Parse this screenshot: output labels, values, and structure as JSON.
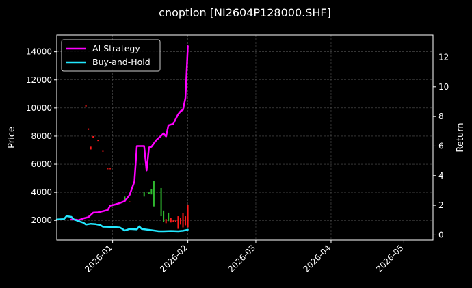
{
  "chart_data": {
    "type": "line",
    "title": "cnoption [NI2604P128000.SHF]",
    "ylabel": "Price",
    "y2label": "Return",
    "x_range": [
      "2025-12-09",
      "2026-05-13"
    ],
    "ylim": [
      600,
      15200
    ],
    "y2lim": [
      -0.35,
      13.5
    ],
    "x_tick_labels": [
      "2026-01",
      "2026-02",
      "2026-03",
      "2026-04",
      "2026-05"
    ],
    "x_tick_dates": [
      "2026-01-01",
      "2026-02-01",
      "2026-03-01",
      "2026-04-01",
      "2026-05-01"
    ],
    "y_ticks": [
      2000,
      4000,
      6000,
      8000,
      10000,
      12000,
      14000
    ],
    "y_tick_labels": [
      "2000",
      "4000",
      "6000",
      "8000",
      "10000",
      "12000",
      "14000"
    ],
    "y2_ticks": [
      0,
      2,
      4,
      6,
      8,
      10,
      12
    ],
    "y2_tick_labels": [
      "0",
      "2",
      "4",
      "6",
      "8",
      "10",
      "12"
    ],
    "grid": true,
    "legend_position": "top-left",
    "series": [
      {
        "name": "AI Strategy",
        "axis": "right",
        "color": "#ff00ff",
        "points": [
          [
            "2025-12-15",
            1.05
          ],
          [
            "2025-12-17",
            1.03
          ],
          [
            "2025-12-18",
            1.0
          ],
          [
            "2025-12-20",
            1.12
          ],
          [
            "2025-12-22",
            1.2
          ],
          [
            "2025-12-24",
            1.5
          ],
          [
            "2025-12-26",
            1.52
          ],
          [
            "2025-12-28",
            1.6
          ],
          [
            "2025-12-30",
            1.68
          ],
          [
            "2025-12-31",
            1.98
          ],
          [
            "2026-01-02",
            2.05
          ],
          [
            "2026-01-04",
            2.15
          ],
          [
            "2026-01-06",
            2.28
          ],
          [
            "2026-01-08",
            2.7
          ],
          [
            "2026-01-09",
            3.15
          ],
          [
            "2026-01-10",
            3.6
          ],
          [
            "2026-01-11",
            6.0
          ],
          [
            "2026-01-13",
            6.0
          ],
          [
            "2026-01-14",
            6.0
          ],
          [
            "2026-01-15",
            4.35
          ],
          [
            "2026-01-16",
            5.9
          ],
          [
            "2026-01-17",
            5.95
          ],
          [
            "2026-01-19",
            6.4
          ],
          [
            "2026-01-21",
            6.7
          ],
          [
            "2026-01-22",
            6.85
          ],
          [
            "2026-01-23",
            6.65
          ],
          [
            "2026-01-24",
            7.4
          ],
          [
            "2026-01-26",
            7.5
          ],
          [
            "2026-01-28",
            8.15
          ],
          [
            "2026-01-29",
            8.35
          ],
          [
            "2026-01-30",
            8.45
          ],
          [
            "2026-01-31",
            9.25
          ],
          [
            "2026-02-01",
            12.75
          ]
        ]
      },
      {
        "name": "Buy-and-Hold",
        "axis": "right",
        "color": "#22e8ff",
        "points": [
          [
            "2025-12-09",
            1.05
          ],
          [
            "2025-12-12",
            1.07
          ],
          [
            "2025-12-13",
            1.27
          ],
          [
            "2025-12-15",
            1.22
          ],
          [
            "2025-12-16",
            1.05
          ],
          [
            "2025-12-18",
            0.93
          ],
          [
            "2025-12-20",
            0.82
          ],
          [
            "2025-12-21",
            0.7
          ],
          [
            "2025-12-23",
            0.75
          ],
          [
            "2025-12-25",
            0.72
          ],
          [
            "2025-12-27",
            0.66
          ],
          [
            "2025-12-28",
            0.55
          ],
          [
            "2026-01-01",
            0.53
          ],
          [
            "2026-01-04",
            0.5
          ],
          [
            "2026-01-06",
            0.3
          ],
          [
            "2026-01-08",
            0.4
          ],
          [
            "2026-01-11",
            0.37
          ],
          [
            "2026-01-12",
            0.58
          ],
          [
            "2026-01-13",
            0.4
          ],
          [
            "2026-01-17",
            0.32
          ],
          [
            "2026-01-20",
            0.25
          ],
          [
            "2026-01-22",
            0.25
          ],
          [
            "2026-01-25",
            0.27
          ],
          [
            "2026-01-28",
            0.25
          ],
          [
            "2026-01-30",
            0.28
          ],
          [
            "2026-02-01",
            0.35
          ]
        ]
      }
    ],
    "candles": {
      "axis": "left",
      "up_color": "#2fb82f",
      "down_color": "#ff1a1a",
      "items": [
        [
          "2025-12-21",
          10200,
          10100,
          "down"
        ],
        [
          "2025-12-22",
          8550,
          8450,
          "down"
        ],
        [
          "2025-12-23",
          7250,
          7050,
          "down"
        ],
        [
          "2025-12-24",
          8000,
          7900,
          "down"
        ],
        [
          "2025-12-26",
          7750,
          7650,
          "down"
        ],
        [
          "2025-12-28",
          6950,
          6900,
          "down"
        ],
        [
          "2025-12-30",
          5700,
          5650,
          "down"
        ],
        [
          "2025-12-31",
          5700,
          5650,
          "down"
        ],
        [
          "2026-01-06",
          3700,
          3350,
          "up"
        ],
        [
          "2026-01-08",
          3350,
          3300,
          "down"
        ],
        [
          "2026-01-14",
          4050,
          3700,
          "up"
        ],
        [
          "2026-01-16",
          4000,
          3900,
          "up"
        ],
        [
          "2026-01-17",
          4200,
          3850,
          "up"
        ],
        [
          "2026-01-18",
          4800,
          3000,
          "up"
        ],
        [
          "2026-01-21",
          4300,
          2300,
          "up"
        ],
        [
          "2026-01-22",
          2700,
          1900,
          "up"
        ],
        [
          "2026-01-23",
          2100,
          1800,
          "down"
        ],
        [
          "2026-01-24",
          2550,
          1950,
          "up"
        ],
        [
          "2026-01-25",
          2200,
          1850,
          "down"
        ],
        [
          "2026-01-26",
          2000,
          1900,
          "down"
        ],
        [
          "2026-01-27",
          2000,
          1900,
          "down"
        ],
        [
          "2026-01-28",
          2300,
          1400,
          "down"
        ],
        [
          "2026-01-29",
          2200,
          1700,
          "down"
        ],
        [
          "2026-01-30",
          2500,
          1500,
          "down"
        ],
        [
          "2026-01-31",
          2300,
          1650,
          "down"
        ],
        [
          "2026-02-01",
          3100,
          1500,
          "down"
        ]
      ]
    }
  }
}
